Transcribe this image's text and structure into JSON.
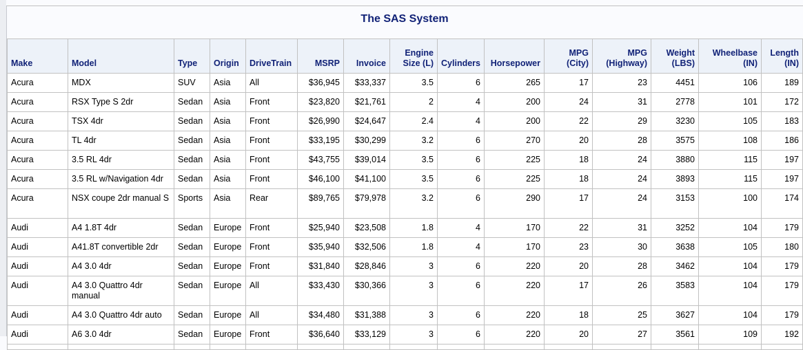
{
  "title": "The SAS System",
  "columns": [
    {
      "label": "Make",
      "align": "l"
    },
    {
      "label": "Model",
      "align": "l"
    },
    {
      "label": "Type",
      "align": "l"
    },
    {
      "label": "Origin",
      "align": "l"
    },
    {
      "label": "DriveTrain",
      "align": "l"
    },
    {
      "label": "MSRP",
      "align": "r"
    },
    {
      "label": "Invoice",
      "align": "r"
    },
    {
      "label": "Engine\nSize (L)",
      "align": "r"
    },
    {
      "label": "Cylinders",
      "align": "r"
    },
    {
      "label": "Horsepower",
      "align": "r"
    },
    {
      "label": "MPG\n(City)",
      "align": "r"
    },
    {
      "label": "MPG\n(Highway)",
      "align": "r"
    },
    {
      "label": "Weight\n(LBS)",
      "align": "r"
    },
    {
      "label": "Wheelbase\n(IN)",
      "align": "r"
    },
    {
      "label": "Length\n(IN)",
      "align": "r"
    }
  ],
  "rows": [
    [
      "Acura",
      "MDX",
      "SUV",
      "Asia",
      "All",
      "$36,945",
      "$33,337",
      "3.5",
      "6",
      "265",
      "17",
      "23",
      "4451",
      "106",
      "189"
    ],
    [
      "Acura",
      "RSX Type S 2dr",
      "Sedan",
      "Asia",
      "Front",
      "$23,820",
      "$21,761",
      "2",
      "4",
      "200",
      "24",
      "31",
      "2778",
      "101",
      "172"
    ],
    [
      "Acura",
      "TSX 4dr",
      "Sedan",
      "Asia",
      "Front",
      "$26,990",
      "$24,647",
      "2.4",
      "4",
      "200",
      "22",
      "29",
      "3230",
      "105",
      "183"
    ],
    [
      "Acura",
      "TL 4dr",
      "Sedan",
      "Asia",
      "Front",
      "$33,195",
      "$30,299",
      "3.2",
      "6",
      "270",
      "20",
      "28",
      "3575",
      "108",
      "186"
    ],
    [
      "Acura",
      "3.5 RL 4dr",
      "Sedan",
      "Asia",
      "Front",
      "$43,755",
      "$39,014",
      "3.5",
      "6",
      "225",
      "18",
      "24",
      "3880",
      "115",
      "197"
    ],
    [
      "Acura",
      "3.5 RL w/Navigation 4dr",
      "Sedan",
      "Asia",
      "Front",
      "$46,100",
      "$41,100",
      "3.5",
      "6",
      "225",
      "18",
      "24",
      "3893",
      "115",
      "197"
    ],
    [
      "Acura",
      "NSX coupe 2dr manual S",
      "Sports",
      "Asia",
      "Rear",
      "$89,765",
      "$79,978",
      "3.2",
      "6",
      "290",
      "17",
      "24",
      "3153",
      "100",
      "174"
    ],
    [
      "Audi",
      "A4 1.8T 4dr",
      "Sedan",
      "Europe",
      "Front",
      "$25,940",
      "$23,508",
      "1.8",
      "4",
      "170",
      "22",
      "31",
      "3252",
      "104",
      "179"
    ],
    [
      "Audi",
      "A41.8T convertible 2dr",
      "Sedan",
      "Europe",
      "Front",
      "$35,940",
      "$32,506",
      "1.8",
      "4",
      "170",
      "23",
      "30",
      "3638",
      "105",
      "180"
    ],
    [
      "Audi",
      "A4 3.0 4dr",
      "Sedan",
      "Europe",
      "Front",
      "$31,840",
      "$28,846",
      "3",
      "6",
      "220",
      "20",
      "28",
      "3462",
      "104",
      "179"
    ],
    [
      "Audi",
      "A4 3.0 Quattro 4dr manual",
      "Sedan",
      "Europe",
      "All",
      "$33,430",
      "$30,366",
      "3",
      "6",
      "220",
      "17",
      "26",
      "3583",
      "104",
      "179"
    ],
    [
      "Audi",
      "A4 3.0 Quattro 4dr auto",
      "Sedan",
      "Europe",
      "All",
      "$34,480",
      "$31,388",
      "3",
      "6",
      "220",
      "18",
      "25",
      "3627",
      "104",
      "179"
    ],
    [
      "Audi",
      "A6 3.0 4dr",
      "Sedan",
      "Europe",
      "Front",
      "$36,640",
      "$33,129",
      "3",
      "6",
      "220",
      "20",
      "27",
      "3561",
      "109",
      "192"
    ]
  ]
}
